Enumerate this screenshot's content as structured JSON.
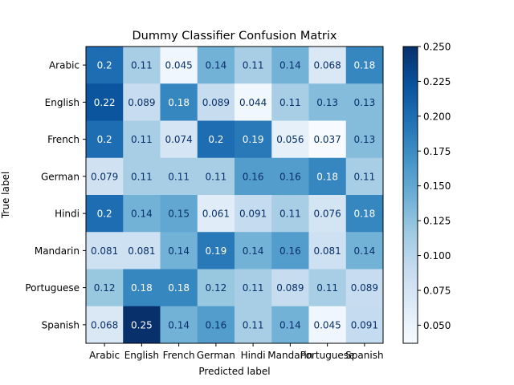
{
  "chart_data": {
    "type": "heatmap",
    "title": "Dummy Classifier Confusion Matrix",
    "xlabel": "Predicted label",
    "ylabel": "True label",
    "x_categories": [
      "Arabic",
      "English",
      "French",
      "German",
      "Hindi",
      "Mandarin",
      "Portuguese",
      "Spanish"
    ],
    "y_categories": [
      "Arabic",
      "English",
      "French",
      "German",
      "Hindi",
      "Mandarin",
      "Portuguese",
      "Spanish"
    ],
    "values": [
      [
        0.2,
        0.11,
        0.045,
        0.14,
        0.11,
        0.14,
        0.068,
        0.18
      ],
      [
        0.22,
        0.089,
        0.18,
        0.089,
        0.044,
        0.11,
        0.13,
        0.13
      ],
      [
        0.2,
        0.11,
        0.074,
        0.2,
        0.19,
        0.056,
        0.037,
        0.13
      ],
      [
        0.079,
        0.11,
        0.11,
        0.11,
        0.16,
        0.16,
        0.18,
        0.11
      ],
      [
        0.2,
        0.14,
        0.15,
        0.061,
        0.091,
        0.11,
        0.076,
        0.18
      ],
      [
        0.081,
        0.081,
        0.14,
        0.19,
        0.14,
        0.16,
        0.081,
        0.14
      ],
      [
        0.12,
        0.18,
        0.18,
        0.12,
        0.11,
        0.089,
        0.11,
        0.089
      ],
      [
        0.068,
        0.25,
        0.14,
        0.16,
        0.11,
        0.14,
        0.045,
        0.091
      ]
    ],
    "value_labels": [
      [
        "0.2",
        "0.11",
        "0.045",
        "0.14",
        "0.11",
        "0.14",
        "0.068",
        "0.18"
      ],
      [
        "0.22",
        "0.089",
        "0.18",
        "0.089",
        "0.044",
        "0.11",
        "0.13",
        "0.13"
      ],
      [
        "0.2",
        "0.11",
        "0.074",
        "0.2",
        "0.19",
        "0.056",
        "0.037",
        "0.13"
      ],
      [
        "0.079",
        "0.11",
        "0.11",
        "0.11",
        "0.16",
        "0.16",
        "0.18",
        "0.11"
      ],
      [
        "0.2",
        "0.14",
        "0.15",
        "0.061",
        "0.091",
        "0.11",
        "0.076",
        "0.18"
      ],
      [
        "0.081",
        "0.081",
        "0.14",
        "0.19",
        "0.14",
        "0.16",
        "0.081",
        "0.14"
      ],
      [
        "0.12",
        "0.18",
        "0.18",
        "0.12",
        "0.11",
        "0.089",
        "0.11",
        "0.089"
      ],
      [
        "0.068",
        "0.25",
        "0.14",
        "0.16",
        "0.11",
        "0.14",
        "0.045",
        "0.091"
      ]
    ],
    "colormap": "Blues",
    "color_range": [
      0.037,
      0.25
    ],
    "colorbar_ticks": [
      0.05,
      0.075,
      0.1,
      0.125,
      0.15,
      0.175,
      0.2,
      0.225,
      0.25
    ],
    "colorbar_tick_labels": [
      "0.050",
      "0.075",
      "0.100",
      "0.125",
      "0.150",
      "0.175",
      "0.200",
      "0.225",
      "0.250"
    ],
    "grid": false
  }
}
